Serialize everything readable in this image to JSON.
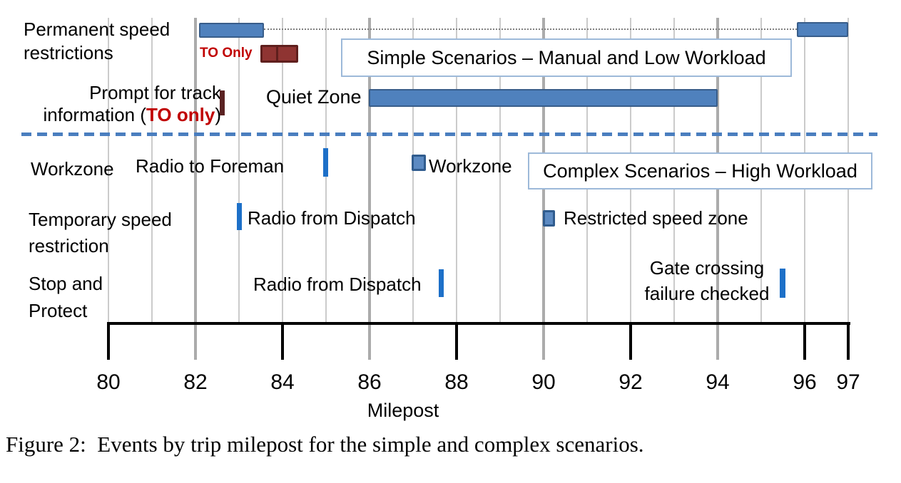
{
  "figure": {
    "caption": "Figure 2:  Events by trip milepost for the simple and complex scenarios."
  },
  "boxes": {
    "simple": "Simple Scenarios – Manual and Low Workload",
    "complex": "Complex Scenarios – High Workload"
  },
  "rows": {
    "permanent_speed": {
      "label_line1": "Permanent speed",
      "label_line2": "restrictions",
      "to_only_label": "TO Only"
    },
    "prompt": {
      "line1": "Prompt for track",
      "line2_pre": "information (",
      "line2_red": "TO only",
      "line2_post": ")"
    },
    "quiet_zone": {
      "label": "Quiet Zone"
    },
    "workzone": {
      "label": "Workzone",
      "radio_label": "Radio to Foreman",
      "event_label": "Workzone"
    },
    "temporary_speed": {
      "label_line1": "Temporary speed",
      "label_line2": "restriction",
      "radio_label": "Radio from Dispatch",
      "event_label": "Restricted speed zone"
    },
    "stop_protect": {
      "label_line1": "Stop and",
      "label_line2": "Protect",
      "radio_label": "Radio from Dispatch",
      "gate_line1": "Gate crossing",
      "gate_line2": "failure checked"
    }
  },
  "colors": {
    "bar_blue_fill": "#4f81bd",
    "bar_blue_border": "#385d8a",
    "tick_blue": "#1d70c8",
    "square_fill": "#5c8ac2",
    "square_border": "#305c8e",
    "bar_darkred_fill": "#8f3432",
    "bar_darkred_border": "#5f1f1d",
    "maroon_tick": "#5a2222",
    "red_text": "#c00000",
    "dashed_separator_blue": "#4a7ebf",
    "box_border": "#9db9d9",
    "gridline_thin": "#cbcbcb",
    "gridline_thick": "#ababab"
  },
  "chart_data": {
    "type": "gantt-timeline-bar",
    "title": "Events by trip milepost for the simple and complex scenarios",
    "x_axis": {
      "label": "Milepost",
      "range": [
        80,
        97
      ],
      "tick_labels": [
        80,
        82,
        84,
        86,
        88,
        90,
        92,
        94,
        96,
        97
      ],
      "major_ticks_below_axis": [
        80,
        84,
        88,
        92,
        96,
        97
      ],
      "emphasized_gridlines": [
        82,
        86,
        90,
        94
      ],
      "gridline_interval": 1,
      "grid": true
    },
    "separator": "horizontal dashed blue line between simple and complex sections",
    "sections": [
      {
        "name": "Simple Scenarios – Manual and Low Workload",
        "rows": [
          {
            "category": "Permanent speed restrictions",
            "events": [
              {
                "type": "bar",
                "start": 82.1,
                "end": 83.6,
                "color": "blue"
              },
              {
                "type": "bar",
                "start": 95.9,
                "end": 97.0,
                "color": "blue",
                "note": "joined to first bar by dotted connector line"
              },
              {
                "type": "bar",
                "start": 83.5,
                "end": 84.4,
                "color": "dark-red",
                "label": "TO Only",
                "segments": [
                  [
                    83.5,
                    83.9
                  ],
                  [
                    83.9,
                    84.4
                  ]
                ]
              }
            ]
          },
          {
            "category": "Prompt for track information (TO only)",
            "events": [
              {
                "type": "tick",
                "milepost": 82.6,
                "color": "dark-red"
              }
            ]
          },
          {
            "category": "Quiet Zone",
            "events": [
              {
                "type": "bar",
                "start": 86.0,
                "end": 94.0,
                "color": "blue"
              }
            ]
          }
        ]
      },
      {
        "name": "Complex Scenarios – High Workload",
        "rows": [
          {
            "category": "Workzone",
            "events": [
              {
                "type": "tick",
                "milepost": 85.0,
                "color": "blue",
                "label": "Radio to Foreman"
              },
              {
                "type": "square",
                "milepost": 87.1,
                "color": "blue",
                "label": "Workzone"
              }
            ]
          },
          {
            "category": "Temporary speed restriction",
            "events": [
              {
                "type": "tick",
                "milepost": 83.0,
                "color": "blue",
                "label": "Radio from Dispatch"
              },
              {
                "type": "square",
                "milepost": 90.1,
                "color": "blue",
                "label": "Restricted speed zone"
              }
            ]
          },
          {
            "category": "Stop and Protect",
            "events": [
              {
                "type": "tick",
                "milepost": 87.7,
                "color": "blue",
                "label": "Radio from Dispatch"
              },
              {
                "type": "tick",
                "milepost": 95.5,
                "color": "blue",
                "label": "Gate crossing failure checked"
              }
            ]
          }
        ]
      }
    ]
  }
}
